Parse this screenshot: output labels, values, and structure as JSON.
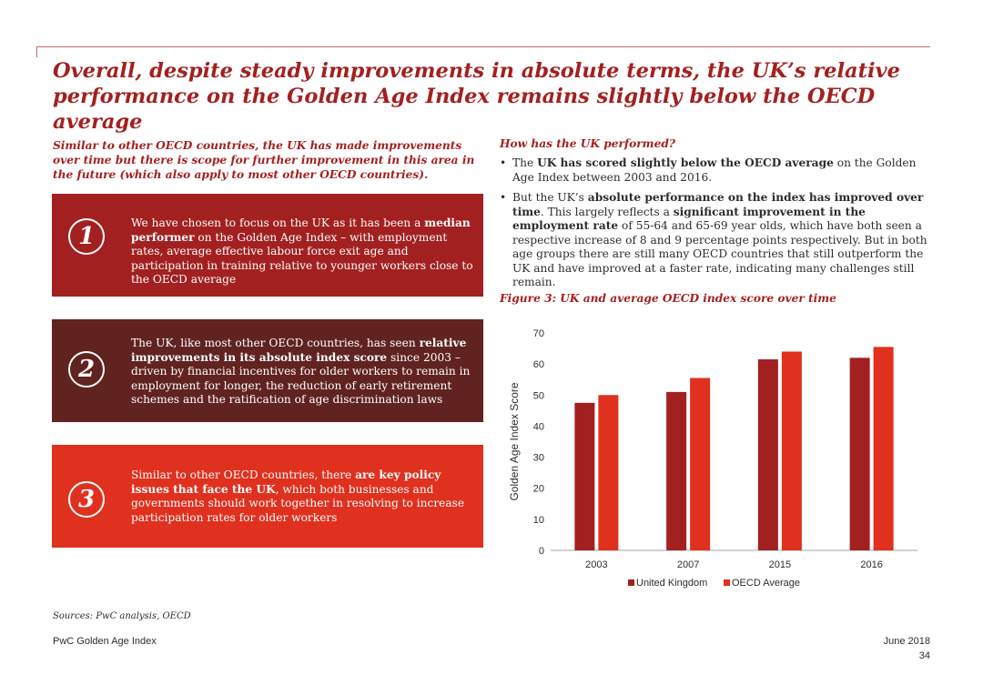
{
  "title": "Overall, despite steady improvements in absolute terms, the UK’s relative performance on the Golden Age Index remains slightly below the OECD average",
  "subtitle": "Similar to other OECD countries, the UK has made improvements over time but there is scope for further improvement in this area in the future (which also apply to most other OECD countries).",
  "cards": [
    {
      "number": "1",
      "parts": [
        "We have chosen to focus on the UK as it has been a ",
        "median performer",
        " on the Golden Age Index – with employment rates, average effective labour force exit age and participation in training relative to younger workers close to the OECD average"
      ]
    },
    {
      "number": "2",
      "parts": [
        "The UK, like most other OECD countries, has seen ",
        "relative improvements in its absolute index score",
        " since 2003 – driven by financial incentives for older workers to remain in employment for longer, the reduction of early retirement schemes and the ratification of age discrimination laws"
      ]
    },
    {
      "number": "3",
      "parts": [
        "Similar to other OECD countries, there ",
        "are key policy issues that face the UK",
        ", which both businesses and governments should work together in resolving to increase participation rates for older workers"
      ]
    }
  ],
  "rhs_heading": "How has the UK performed?",
  "bullets": [
    {
      "marker": "•",
      "parts": [
        "The ",
        "UK has scored slightly below the OECD average",
        " on the Golden Age Index between 2003 and 2016."
      ]
    },
    {
      "marker": "•",
      "parts": [
        "But the UK’s ",
        "absolute performance on the index has improved over time",
        ". This largely reflects a ",
        "significant improvement in the employment rate",
        " of 55-64 and 65-69 year olds, which have both seen a respective increase of 8 and 9 percentage points respectively. But in both age groups there are still many OECD countries that still outperform the UK and have improved at a faster rate, indicating many challenges still remain."
      ]
    }
  ],
  "figure_caption": "Figure 3: UK and average OECD index score over time",
  "chart_data": {
    "type": "bar",
    "categories": [
      "2003",
      "2007",
      "2015",
      "2016"
    ],
    "series": [
      {
        "name": "United Kingdom",
        "values": [
          47.5,
          51,
          61.5,
          62
        ],
        "color": "#a32020"
      },
      {
        "name": "OECD Average",
        "values": [
          50,
          55.5,
          64,
          65.5
        ],
        "color": "#e0301e"
      }
    ],
    "ylabel": "Golden Age Index Score",
    "xlabel": "",
    "ylim": [
      0,
      70
    ],
    "yticks": [
      "0",
      "10",
      "20",
      "30",
      "40",
      "50",
      "60",
      "70"
    ],
    "grid": false,
    "legend": "bottom"
  },
  "sources": "Sources: PwC analysis, OECD",
  "footer": {
    "left": "PwC Golden Age Index",
    "date": "June 2018",
    "page": "34"
  }
}
